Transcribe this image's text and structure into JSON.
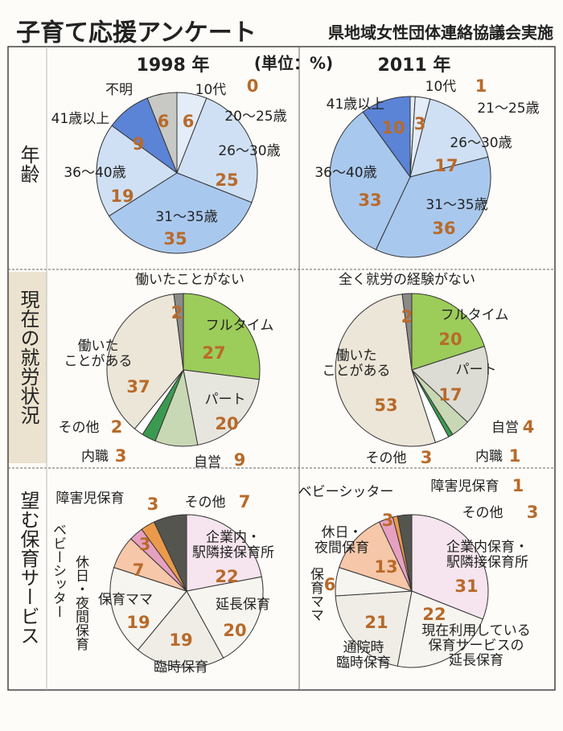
{
  "header": {
    "title": "子育て応援アンケート",
    "source": "県地域女性団体連絡協議会実施",
    "unit": "(単位：%)"
  },
  "columns": [
    "1998 年",
    "2011 年"
  ],
  "rows": [
    "年齢",
    "現在の就労状況",
    "望む保育サービス"
  ],
  "chart_data": [
    {
      "type": "pie",
      "categories": [
        "10代",
        "20〜25歳",
        "26〜30歳",
        "31〜35歳",
        "36〜40歳",
        "41歳以上",
        "不明"
      ],
      "values": [
        0,
        6,
        25,
        35,
        19,
        9,
        6
      ],
      "colors": [
        "#e4ecf8",
        "#e4ecf8",
        "#cfe0f4",
        "#a9c8ee",
        "#cfe0f4",
        "#5b84d6",
        "#c8c8c4"
      ]
    },
    {
      "type": "pie",
      "categories": [
        "10代",
        "21〜25歳",
        "26〜30歳",
        "31〜35歳",
        "36〜40歳",
        "41歳以上"
      ],
      "values": [
        1,
        3,
        17,
        36,
        33,
        10
      ],
      "colors": [
        "#e4ecf8",
        "#e4ecf8",
        "#cfe0f4",
        "#a9c8ee",
        "#a9c8ee",
        "#5b84d6"
      ]
    },
    {
      "type": "pie",
      "categories": [
        "フルタイム",
        "パート",
        "自営",
        "内職",
        "その他",
        "働いた\nことがある",
        "働いたことがない"
      ],
      "values": [
        27,
        20,
        9,
        3,
        2,
        37,
        2
      ],
      "colors": [
        "#9ccc5a",
        "#e6e6de",
        "#c9d8b4",
        "#3a9a50",
        "#ffffff",
        "#ece6d8",
        "#8a8a86"
      ]
    },
    {
      "type": "pie",
      "categories": [
        "フルタイム",
        "パート",
        "自営",
        "内職",
        "その他",
        "働いた\nことがある",
        "全く就労の経験がない"
      ],
      "values": [
        20,
        17,
        4,
        1,
        3,
        53,
        2
      ],
      "colors": [
        "#9ccc5a",
        "#dcdcd4",
        "#c9d8b4",
        "#3a9a50",
        "#ffffff",
        "#ece6d8",
        "#8a8a86"
      ]
    },
    {
      "type": "pie",
      "categories": [
        "企業内・\n駅隣接保育所",
        "延長保育",
        "臨時保育",
        "保育ママ",
        "休日・夜間保育",
        "ベビーシッター",
        "障害児保育",
        "その他"
      ],
      "values": [
        22,
        20,
        19,
        19,
        7,
        3,
        3,
        7
      ],
      "colors": [
        "#f6e4ee",
        "#f7f5ef",
        "#efede6",
        "#f7f5ef",
        "#f6c7a8",
        "#e6a0c0",
        "#ea9a4a",
        "#555550"
      ]
    },
    {
      "type": "pie",
      "categories": [
        "企業内保育・\n駅隣接保育所",
        "現在利用している\n保育サービスの\n延長保育",
        "通院時\n臨時保育",
        "保育ママ",
        "休日・\n夜間保育",
        "ベビーシッター",
        "障害児保育",
        "その他"
      ],
      "values": [
        31,
        22,
        21,
        6,
        13,
        3,
        1,
        3
      ],
      "colors": [
        "#f6e4ee",
        "#f7f5ef",
        "#efede6",
        "#f7f5ef",
        "#f6c7a8",
        "#e6a0c0",
        "#ea9a4a",
        "#555550"
      ]
    }
  ]
}
